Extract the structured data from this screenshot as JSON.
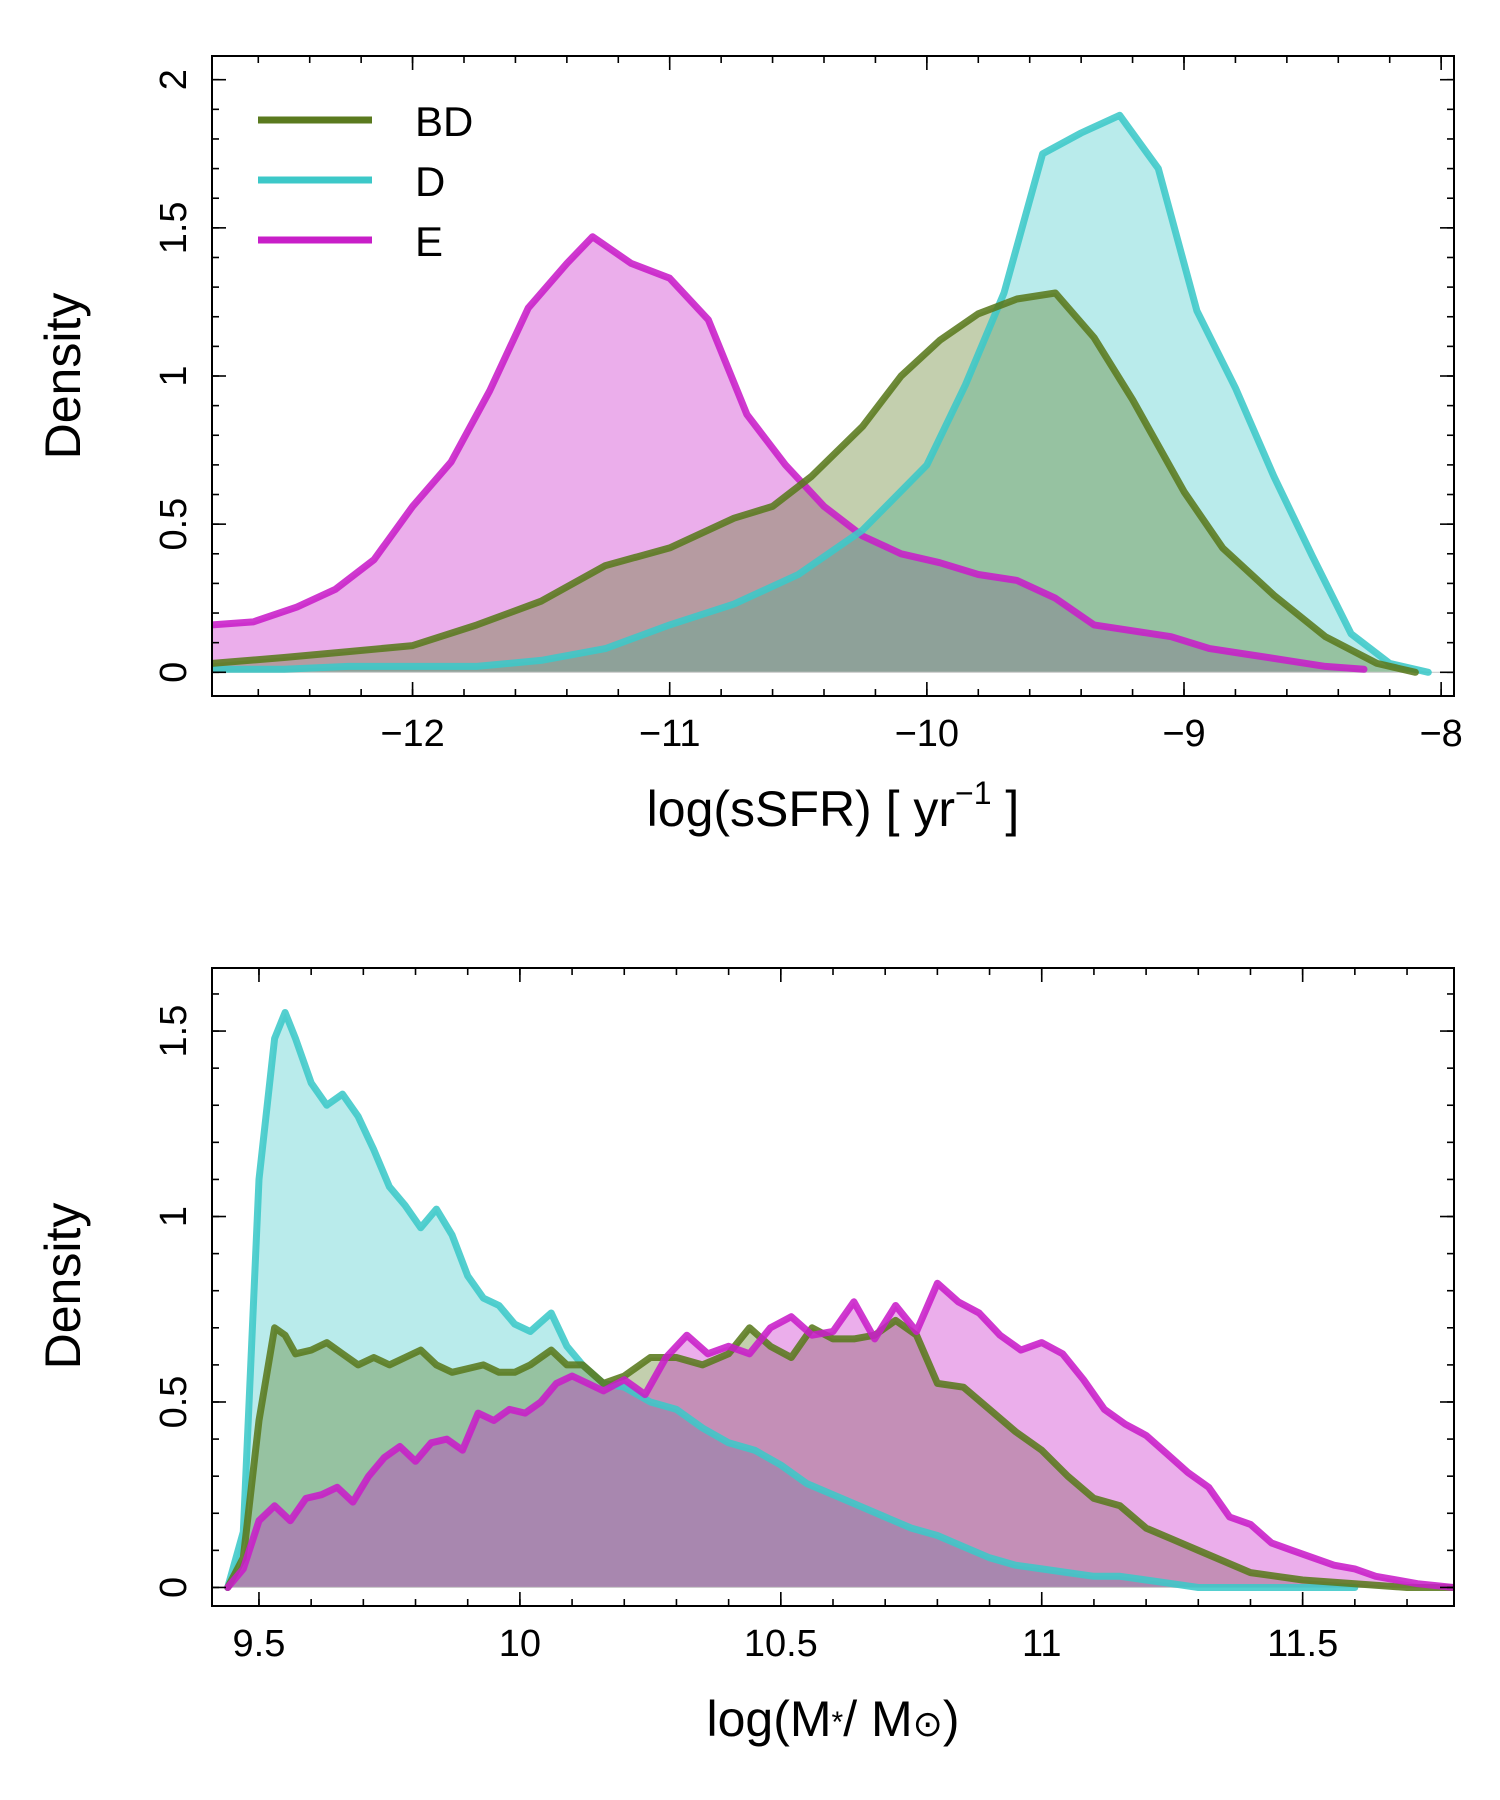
{
  "colors": {
    "BD": "#5a7a1e",
    "D": "#3cc8c8",
    "E": "#c81ec8"
  },
  "chart_data": [
    {
      "type": "area",
      "ylabel": "Density",
      "xlabel": {
        "base": "log(sSFR) [ yr",
        "sup": "−1",
        "tail": " ]"
      },
      "xlim": [
        -12.78,
        -7.95
      ],
      "ylim": [
        -0.08,
        2.08
      ],
      "xticks": [
        -12,
        -11,
        -10,
        -9,
        -8
      ],
      "xticklabels": [
        "−12",
        "−11",
        "−10",
        "−9",
        "−8"
      ],
      "yticks": [
        0,
        0.5,
        1,
        1.5,
        2
      ],
      "yticklabels": [
        "0",
        "0.5",
        "1",
        "1.5",
        "2"
      ],
      "legend": {
        "location": "top-left",
        "entries": [
          "BD",
          "D",
          "E"
        ]
      },
      "series": [
        {
          "name": "E",
          "x": [
            -12.78,
            -12.62,
            -12.45,
            -12.3,
            -12.15,
            -12.0,
            -11.85,
            -11.7,
            -11.55,
            -11.4,
            -11.3,
            -11.15,
            -11.0,
            -10.85,
            -10.7,
            -10.55,
            -10.4,
            -10.25,
            -10.1,
            -9.95,
            -9.8,
            -9.65,
            -9.5,
            -9.35,
            -9.2,
            -9.05,
            -8.9,
            -8.75,
            -8.6,
            -8.45,
            -8.3
          ],
          "values": [
            0.16,
            0.17,
            0.22,
            0.28,
            0.38,
            0.56,
            0.71,
            0.95,
            1.23,
            1.38,
            1.47,
            1.38,
            1.33,
            1.19,
            0.87,
            0.7,
            0.56,
            0.46,
            0.4,
            0.37,
            0.33,
            0.31,
            0.25,
            0.16,
            0.14,
            0.12,
            0.08,
            0.06,
            0.04,
            0.02,
            0.01
          ]
        },
        {
          "name": "D",
          "x": [
            -12.78,
            -12.5,
            -12.25,
            -12.0,
            -11.75,
            -11.5,
            -11.25,
            -11.0,
            -10.75,
            -10.5,
            -10.25,
            -10.0,
            -9.85,
            -9.7,
            -9.55,
            -9.4,
            -9.25,
            -9.1,
            -8.95,
            -8.8,
            -8.65,
            -8.5,
            -8.35,
            -8.2,
            -8.05
          ],
          "values": [
            0.01,
            0.01,
            0.02,
            0.02,
            0.02,
            0.04,
            0.08,
            0.16,
            0.23,
            0.33,
            0.48,
            0.7,
            0.97,
            1.28,
            1.75,
            1.82,
            1.88,
            1.7,
            1.22,
            0.96,
            0.66,
            0.39,
            0.13,
            0.03,
            0.0
          ]
        },
        {
          "name": "BD",
          "x": [
            -12.78,
            -12.5,
            -12.25,
            -12.0,
            -11.75,
            -11.5,
            -11.25,
            -11.0,
            -10.75,
            -10.6,
            -10.45,
            -10.25,
            -10.1,
            -9.95,
            -9.8,
            -9.65,
            -9.5,
            -9.35,
            -9.2,
            -9.0,
            -8.85,
            -8.65,
            -8.45,
            -8.25,
            -8.1
          ],
          "values": [
            0.03,
            0.05,
            0.07,
            0.09,
            0.16,
            0.24,
            0.36,
            0.42,
            0.52,
            0.56,
            0.66,
            0.83,
            1.0,
            1.12,
            1.21,
            1.26,
            1.28,
            1.13,
            0.92,
            0.61,
            0.42,
            0.26,
            0.12,
            0.03,
            0.0
          ]
        }
      ]
    },
    {
      "type": "area",
      "ylabel": "Density",
      "xlabel": {
        "base": "log(M",
        "star": "*",
        "mid": "/ M",
        "sun": "⊙",
        "tail": ")"
      },
      "xlim": [
        9.41,
        11.79
      ],
      "ylim": [
        -0.05,
        1.67
      ],
      "xticks": [
        9.5,
        10,
        10.5,
        11,
        11.5
      ],
      "xticklabels": [
        "9.5",
        "10",
        "10.5",
        "11",
        "11.5"
      ],
      "yticks": [
        0,
        0.5,
        1,
        1.5
      ],
      "yticklabels": [
        "0",
        "0.5",
        "1",
        "1.5"
      ],
      "series": [
        {
          "name": "D",
          "x": [
            9.44,
            9.47,
            9.5,
            9.53,
            9.55,
            9.57,
            9.6,
            9.63,
            9.66,
            9.69,
            9.72,
            9.75,
            9.78,
            9.81,
            9.84,
            9.87,
            9.9,
            9.93,
            9.96,
            9.99,
            10.02,
            10.06,
            10.09,
            10.12,
            10.16,
            10.2,
            10.25,
            10.3,
            10.35,
            10.4,
            10.45,
            10.5,
            10.55,
            10.6,
            10.65,
            10.7,
            10.75,
            10.8,
            10.85,
            10.9,
            10.95,
            11.0,
            11.05,
            11.1,
            11.15,
            11.2,
            11.25,
            11.3,
            11.4,
            11.5,
            11.6
          ],
          "values": [
            0.0,
            0.15,
            1.1,
            1.48,
            1.55,
            1.48,
            1.36,
            1.3,
            1.33,
            1.27,
            1.18,
            1.08,
            1.03,
            0.97,
            1.02,
            0.95,
            0.84,
            0.78,
            0.76,
            0.71,
            0.69,
            0.74,
            0.65,
            0.6,
            0.55,
            0.54,
            0.5,
            0.48,
            0.43,
            0.39,
            0.37,
            0.33,
            0.28,
            0.25,
            0.22,
            0.19,
            0.16,
            0.14,
            0.11,
            0.08,
            0.06,
            0.05,
            0.04,
            0.03,
            0.03,
            0.02,
            0.01,
            0.0,
            0.0,
            0.0,
            0.0
          ]
        },
        {
          "name": "BD",
          "x": [
            9.44,
            9.47,
            9.5,
            9.53,
            9.55,
            9.57,
            9.6,
            9.63,
            9.66,
            9.69,
            9.72,
            9.75,
            9.78,
            9.81,
            9.84,
            9.87,
            9.9,
            9.93,
            9.96,
            9.99,
            10.02,
            10.06,
            10.09,
            10.12,
            10.16,
            10.2,
            10.25,
            10.3,
            10.35,
            10.4,
            10.44,
            10.48,
            10.52,
            10.56,
            10.6,
            10.64,
            10.68,
            10.72,
            10.76,
            10.8,
            10.85,
            10.9,
            10.95,
            11.0,
            11.05,
            11.1,
            11.15,
            11.2,
            11.25,
            11.3,
            11.35,
            11.4,
            11.45,
            11.5,
            11.6,
            11.7,
            11.79
          ],
          "values": [
            0.0,
            0.08,
            0.45,
            0.7,
            0.68,
            0.63,
            0.64,
            0.66,
            0.63,
            0.6,
            0.62,
            0.6,
            0.62,
            0.64,
            0.6,
            0.58,
            0.59,
            0.6,
            0.58,
            0.58,
            0.6,
            0.64,
            0.6,
            0.6,
            0.55,
            0.57,
            0.62,
            0.62,
            0.6,
            0.63,
            0.7,
            0.65,
            0.62,
            0.7,
            0.67,
            0.67,
            0.68,
            0.72,
            0.68,
            0.55,
            0.54,
            0.48,
            0.42,
            0.37,
            0.3,
            0.24,
            0.22,
            0.16,
            0.13,
            0.1,
            0.07,
            0.04,
            0.03,
            0.02,
            0.01,
            0.0,
            0.0
          ]
        },
        {
          "name": "E",
          "x": [
            9.44,
            9.47,
            9.5,
            9.53,
            9.56,
            9.59,
            9.62,
            9.65,
            9.68,
            9.71,
            9.74,
            9.77,
            9.8,
            9.83,
            9.86,
            9.89,
            9.92,
            9.95,
            9.98,
            10.01,
            10.04,
            10.07,
            10.1,
            10.13,
            10.16,
            10.2,
            10.24,
            10.28,
            10.32,
            10.36,
            10.4,
            10.44,
            10.48,
            10.52,
            10.56,
            10.6,
            10.64,
            10.68,
            10.72,
            10.76,
            10.8,
            10.84,
            10.88,
            10.92,
            10.96,
            11.0,
            11.04,
            11.08,
            11.12,
            11.16,
            11.2,
            11.24,
            11.28,
            11.32,
            11.36,
            11.4,
            11.44,
            11.48,
            11.52,
            11.56,
            11.6,
            11.64,
            11.68,
            11.72,
            11.79
          ],
          "values": [
            0.0,
            0.05,
            0.18,
            0.22,
            0.18,
            0.24,
            0.25,
            0.27,
            0.23,
            0.3,
            0.35,
            0.38,
            0.34,
            0.39,
            0.4,
            0.37,
            0.47,
            0.45,
            0.48,
            0.47,
            0.5,
            0.55,
            0.57,
            0.55,
            0.53,
            0.56,
            0.52,
            0.62,
            0.68,
            0.63,
            0.65,
            0.63,
            0.7,
            0.73,
            0.68,
            0.69,
            0.77,
            0.67,
            0.76,
            0.69,
            0.82,
            0.77,
            0.74,
            0.68,
            0.64,
            0.66,
            0.63,
            0.56,
            0.48,
            0.44,
            0.41,
            0.36,
            0.31,
            0.27,
            0.19,
            0.17,
            0.12,
            0.1,
            0.08,
            0.06,
            0.05,
            0.03,
            0.02,
            0.01,
            0.0
          ]
        }
      ]
    }
  ]
}
